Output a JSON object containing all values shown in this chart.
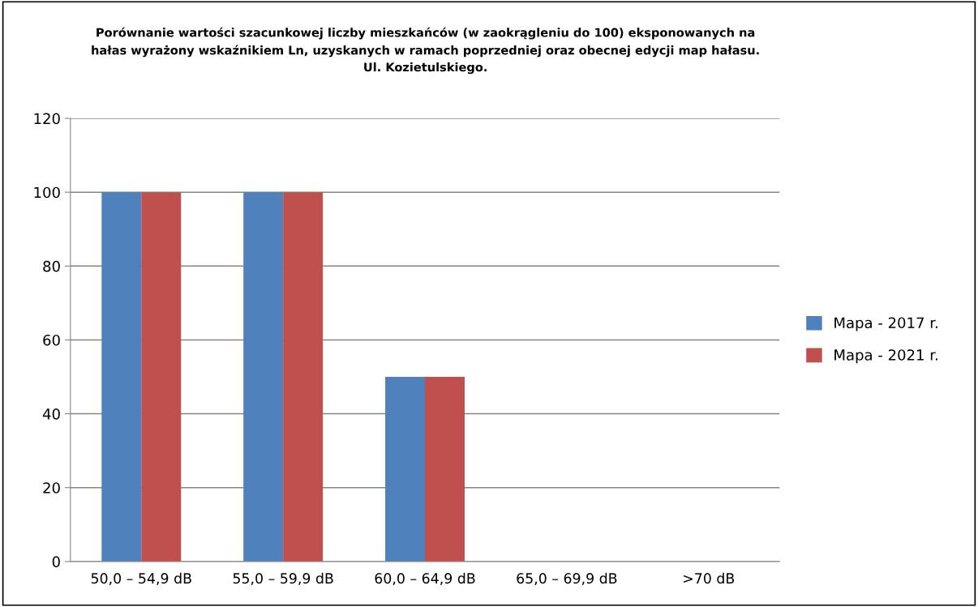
{
  "chart_data": {
    "type": "bar",
    "title": "Porównanie wartości szacunkowej liczby mieszkańców (w zaokrągleniu do 100) eksponowanych na\nhałas wyrażony wskaźnikiem Ln, uzyskanych w ramach poprzedniej oraz obecnej edycji map hałasu.\nUl. Kozietulskiego.",
    "categories": [
      "50,0 – 54,9 dB",
      "55,0 – 59,9 dB",
      "60,0 – 64,9 dB",
      "65,0 – 69,9 dB",
      ">70 dB"
    ],
    "series": [
      {
        "name": "Mapa - 2017 r.",
        "color": "#4f81bd",
        "values": [
          100,
          100,
          50,
          0,
          0
        ]
      },
      {
        "name": "Mapa - 2021 r.",
        "color": "#c0504d",
        "values": [
          100,
          100,
          50,
          0,
          0
        ]
      }
    ],
    "ylim": [
      0,
      120
    ],
    "yticks": [
      0,
      20,
      40,
      60,
      80,
      100,
      120
    ],
    "grid": "y",
    "legend": "right"
  }
}
